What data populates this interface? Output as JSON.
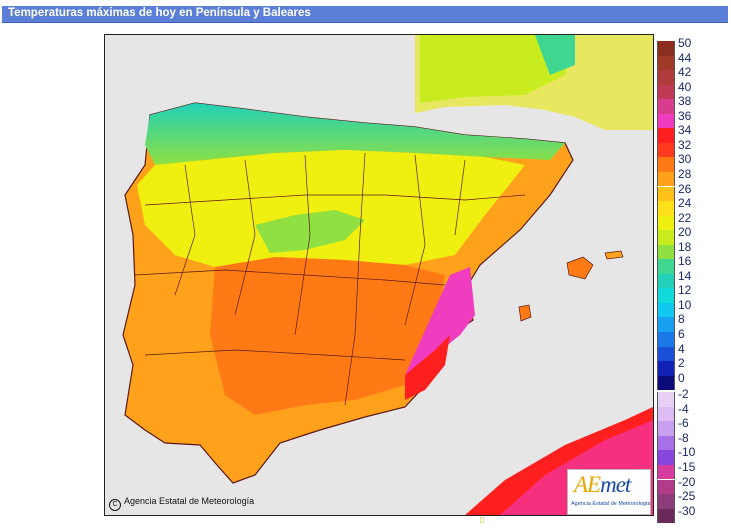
{
  "header": {
    "title": "Temperaturas máximas de hoy en Península y Baleares"
  },
  "map": {
    "copyright": "Agencia Estatal de Meteorología",
    "copyright_symbol": "C",
    "logo": {
      "word_a": "AE",
      "word_b": "met",
      "subtitle": "Agencia Estatal de Meteorología"
    },
    "sea_color": "#e6e6e6",
    "land_outside_color": "#c8c8c8"
  },
  "legend": {
    "upper": [
      {
        "label": "50",
        "color": "#8b2e1f"
      },
      {
        "label": "44",
        "color": "#a03a28"
      },
      {
        "label": "42",
        "color": "#b03c3c"
      },
      {
        "label": "40",
        "color": "#c03a55"
      },
      {
        "label": "38",
        "color": "#d83c8c"
      },
      {
        "label": "36",
        "color": "#f03cbe"
      },
      {
        "label": "34",
        "color": "#ff1f1f"
      },
      {
        "label": "32",
        "color": "#ff3a1f"
      },
      {
        "label": "30",
        "color": "#ff7a14"
      },
      {
        "label": "28",
        "color": "#ffa11a"
      },
      {
        "label": "26",
        "color": "#ffc21a"
      },
      {
        "label": "24",
        "color": "#ffe01a"
      },
      {
        "label": "22",
        "color": "#f0f010"
      },
      {
        "label": "20",
        "color": "#c9ec20"
      },
      {
        "label": "18",
        "color": "#8fe040"
      },
      {
        "label": "16",
        "color": "#3ed690"
      },
      {
        "label": "14",
        "color": "#22d0b8"
      },
      {
        "label": "12",
        "color": "#10dada"
      },
      {
        "label": "10",
        "color": "#10c8f0"
      },
      {
        "label": "8",
        "color": "#1aa0f0"
      },
      {
        "label": "6",
        "color": "#1a78e8"
      },
      {
        "label": "4",
        "color": "#1a50d8"
      },
      {
        "label": "2",
        "color": "#1222b4"
      },
      {
        "label": "0",
        "color": "#0a0a78"
      }
    ],
    "lower": [
      {
        "label": "-2",
        "color": "#e8d0f5"
      },
      {
        "label": "-4",
        "color": "#dcbcf2"
      },
      {
        "label": "-6",
        "color": "#c8a0ee"
      },
      {
        "label": "-8",
        "color": "#a870e6"
      },
      {
        "label": "-10",
        "color": "#8846dc"
      },
      {
        "label": "-15",
        "color": "#d63ca0"
      },
      {
        "label": "-20",
        "color": "#b23c8a"
      },
      {
        "label": "-25",
        "color": "#8c3c78"
      },
      {
        "label": "-30",
        "color": "#6a2a5a"
      }
    ]
  }
}
